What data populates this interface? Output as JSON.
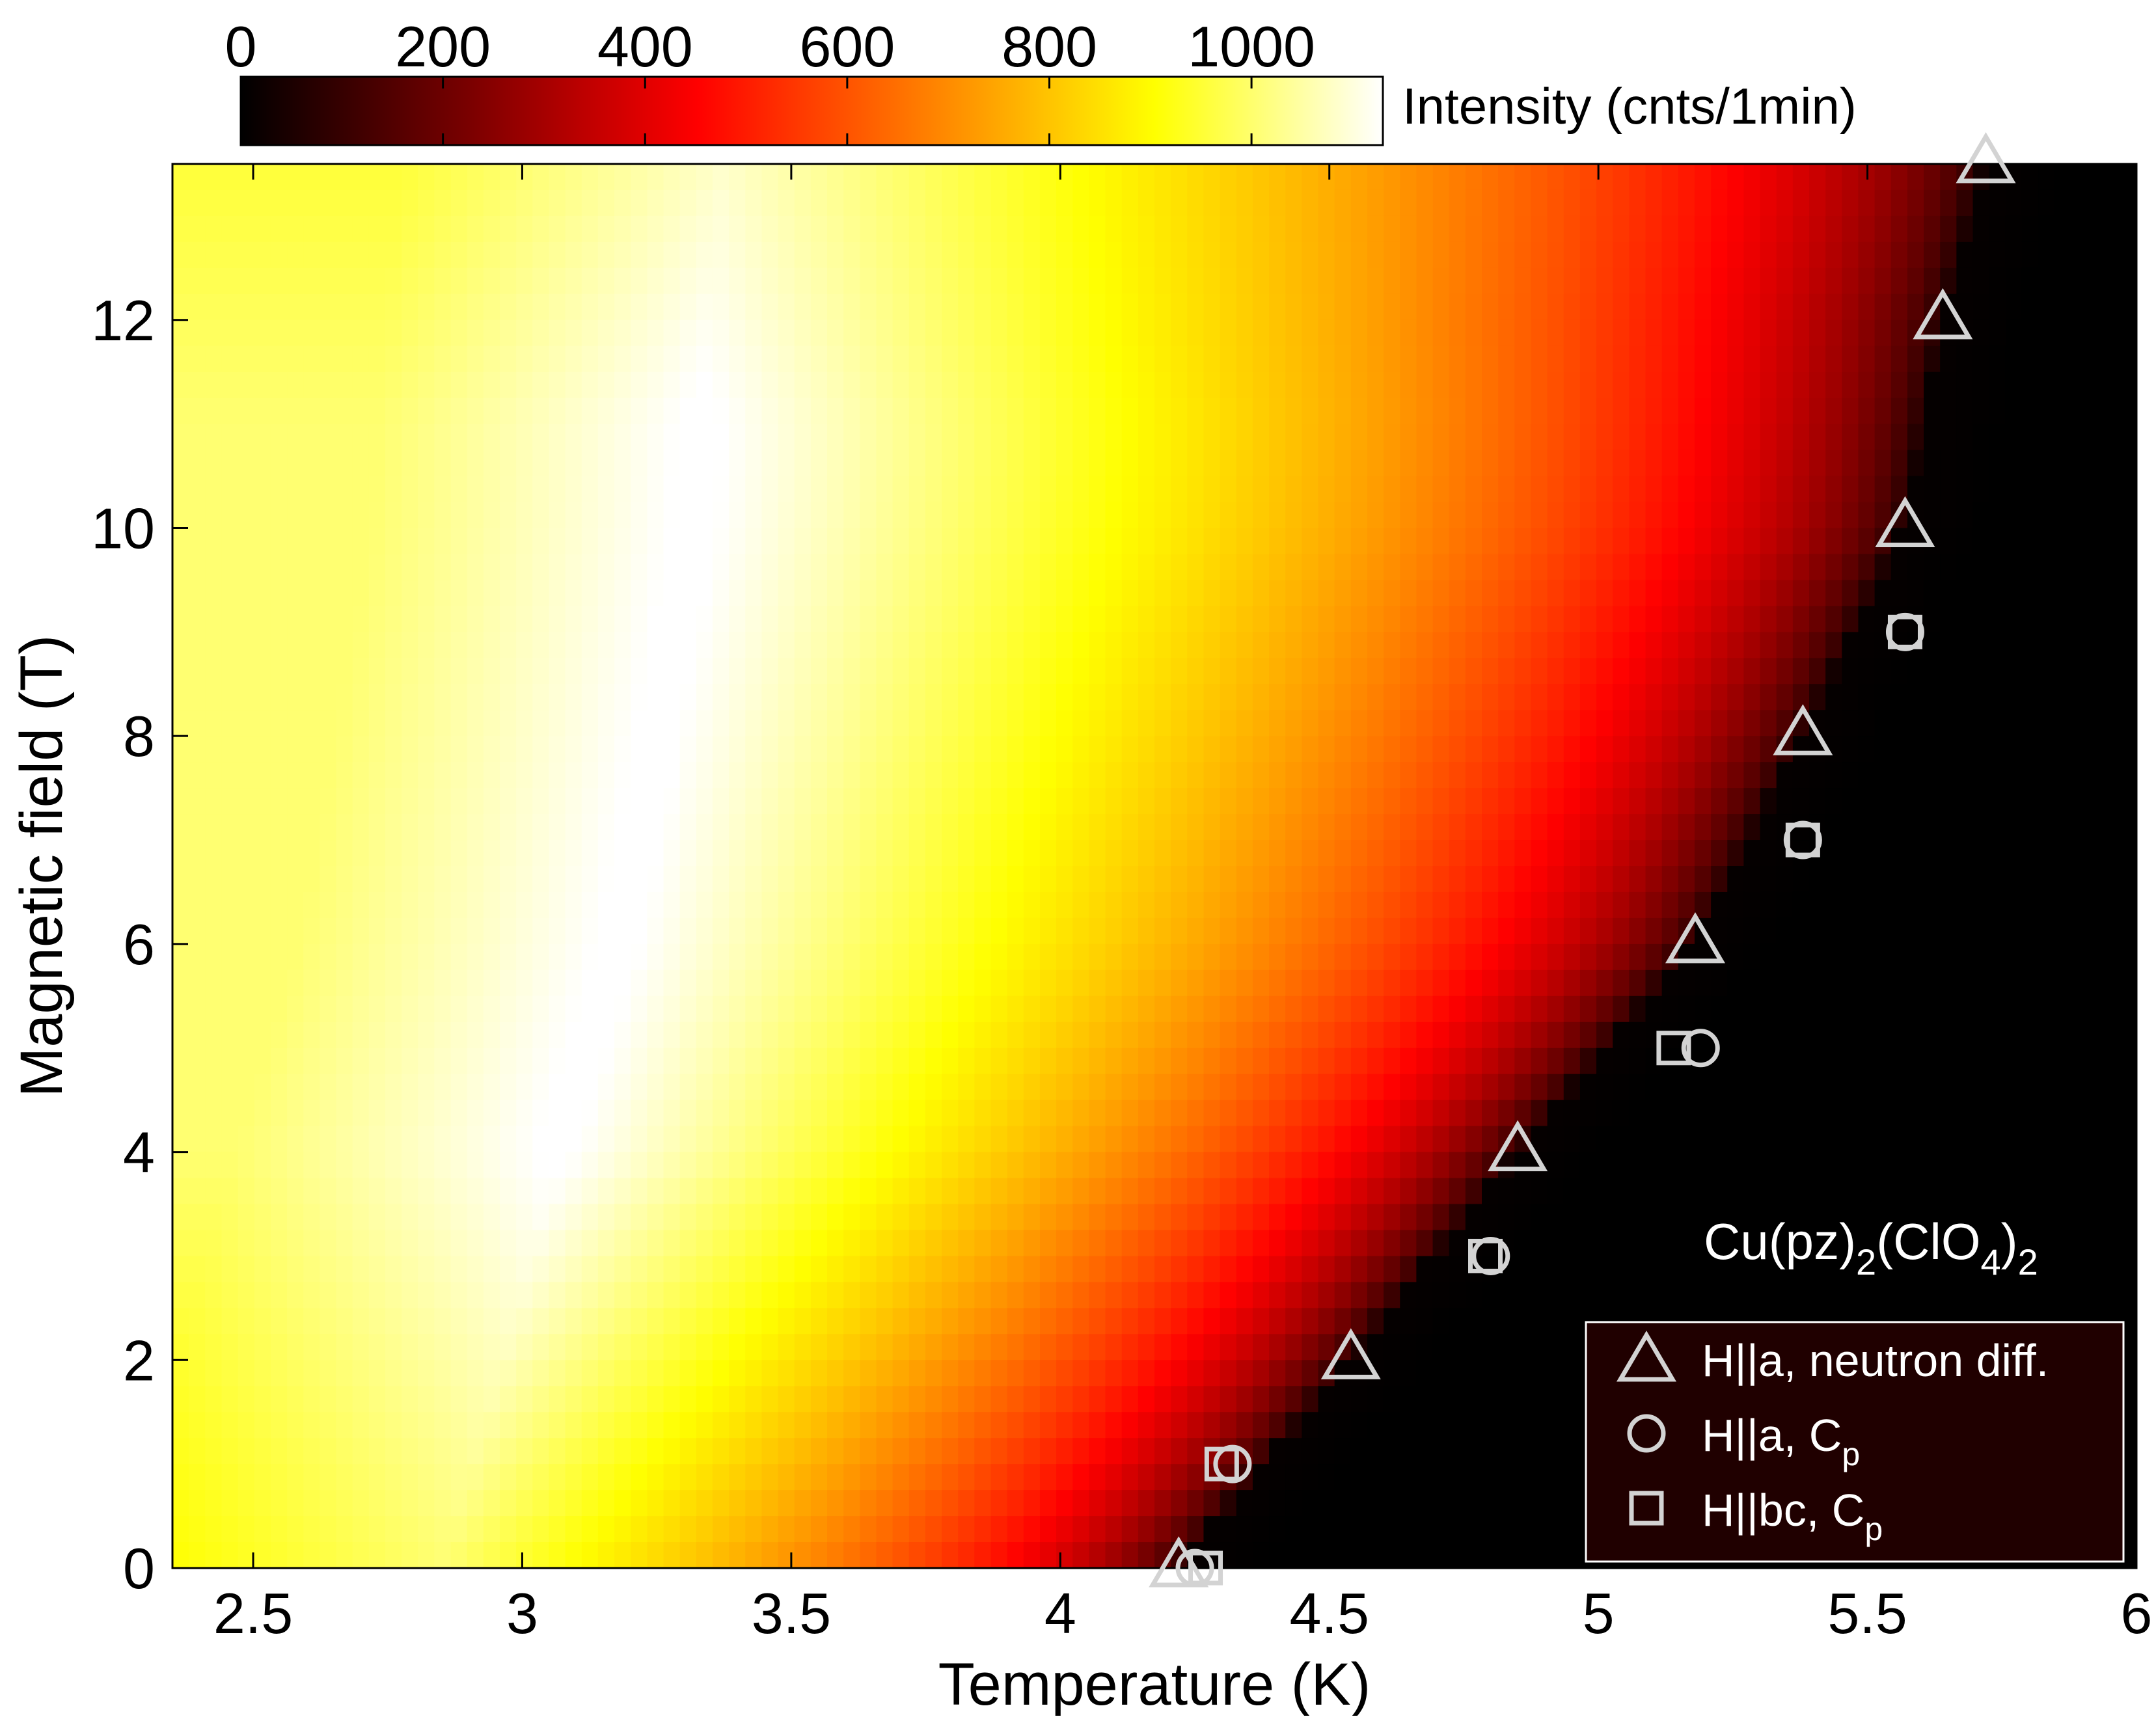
{
  "chart_data": {
    "type": "heatmap",
    "title": "",
    "xlabel": "Temperature (K)",
    "ylabel": "Magnetic field (T)",
    "xlim": [
      2.35,
      6.0
    ],
    "ylim": [
      0,
      13.5
    ],
    "x_ticks": [
      2.5,
      3,
      3.5,
      4,
      4.5,
      5,
      5.5,
      6
    ],
    "x_tick_labels": [
      "2.5",
      "3",
      "3.5",
      "4",
      "4.5",
      "5",
      "5.5",
      "6"
    ],
    "y_ticks": [
      0,
      2,
      4,
      6,
      8,
      10,
      12
    ],
    "y_tick_labels": [
      "0",
      "2",
      "4",
      "6",
      "8",
      "10",
      "12"
    ],
    "grid": false,
    "colorbar": {
      "label": "Intensity (cnts/1min)",
      "range": [
        0,
        1130
      ],
      "ticks": [
        0,
        200,
        400,
        600,
        800,
        1000
      ],
      "tick_labels": [
        "0",
        "200",
        "400",
        "600",
        "800",
        "1000"
      ],
      "colormap": "hot",
      "colors": [
        "#000000",
        "#7a0000",
        "#ff0000",
        "#ff7f00",
        "#ffff00",
        "#ffffff"
      ]
    },
    "heatmap": {
      "boundary_field": [
        0,
        2,
        4,
        6,
        8,
        10,
        12,
        13.5
      ],
      "boundary_temperature": [
        4.22,
        4.54,
        4.85,
        5.18,
        5.38,
        5.57,
        5.64,
        5.72
      ],
      "peak_intensity": 1130,
      "background_intensity": 10
    },
    "annotation": {
      "compound": "Cu(pz)",
      "sub1": "2",
      "compound_mid": "(ClO",
      "sub2": "4",
      "compound_end": ")",
      "sub3": "2"
    },
    "legend_position": "bottom-right",
    "marker_color": "#d3d3d3",
    "series": [
      {
        "name": "H||a, neutron diff.",
        "marker": "triangle",
        "x": [
          4.22,
          4.54,
          4.85,
          5.18,
          5.38,
          5.57,
          5.64,
          5.72
        ],
        "y": [
          0,
          2,
          4,
          6,
          8,
          10,
          12,
          13.5
        ]
      },
      {
        "name": "H||a, C",
        "name_sub": "p",
        "marker": "circle",
        "x": [
          4.25,
          4.32,
          4.8,
          5.19,
          5.38,
          5.57
        ],
        "y": [
          0,
          1,
          3,
          5,
          7,
          9
        ]
      },
      {
        "name": "H||bc, C",
        "name_sub": "p",
        "marker": "square",
        "x": [
          4.27,
          4.3,
          4.79,
          5.14,
          5.38,
          5.57
        ],
        "y": [
          0,
          1,
          3,
          5,
          7,
          9
        ]
      }
    ]
  }
}
